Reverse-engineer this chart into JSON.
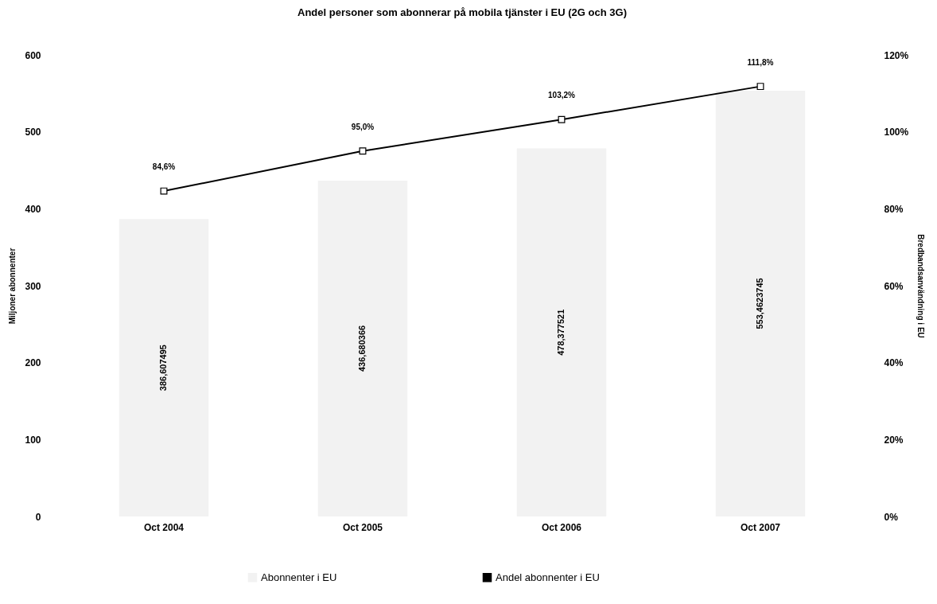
{
  "chart_data": {
    "type": "bar",
    "title": "Andel personer som abonnerar på mobila tjänster i EU (2G och 3G)",
    "ylabel": "Miljoner abonnenter",
    "y2label": "Bredbandsanvändning i EU",
    "categories": [
      "Oct 2004",
      "Oct 2005",
      "Oct 2006",
      "Oct 2007"
    ],
    "series": [
      {
        "name": "Abonnenter i EU",
        "color": "#f2f2f2",
        "values": [
          386.607495,
          436.680366,
          478.377521,
          553.4623745
        ],
        "value_labels": [
          "386,607495",
          "436,680366",
          "478,377521",
          "553,4623745"
        ]
      },
      {
        "name": "Andel abonnenter i EU",
        "type": "line",
        "axis": "y2",
        "color": "#000000",
        "marker": "square",
        "line_style": "solid",
        "values": [
          84.6,
          95.0,
          103.2,
          111.8
        ],
        "value_labels": [
          "84,6%",
          "95,0%",
          "103,2%",
          "111,8%"
        ]
      }
    ],
    "ylim": [
      0,
      600
    ],
    "yticks": [
      0,
      100,
      200,
      300,
      400,
      500,
      600
    ],
    "y2lim": [
      0,
      120
    ],
    "y2ticks": [
      {
        "value": 0,
        "label": "0%"
      },
      {
        "value": 20,
        "label": "20%"
      },
      {
        "value": 40,
        "label": "40%"
      },
      {
        "value": 60,
        "label": "60%"
      },
      {
        "value": 80,
        "label": "80%"
      },
      {
        "value": 100,
        "label": "100%"
      },
      {
        "value": 120,
        "label": "120%"
      }
    ],
    "grid": false,
    "legend": "bottom"
  }
}
